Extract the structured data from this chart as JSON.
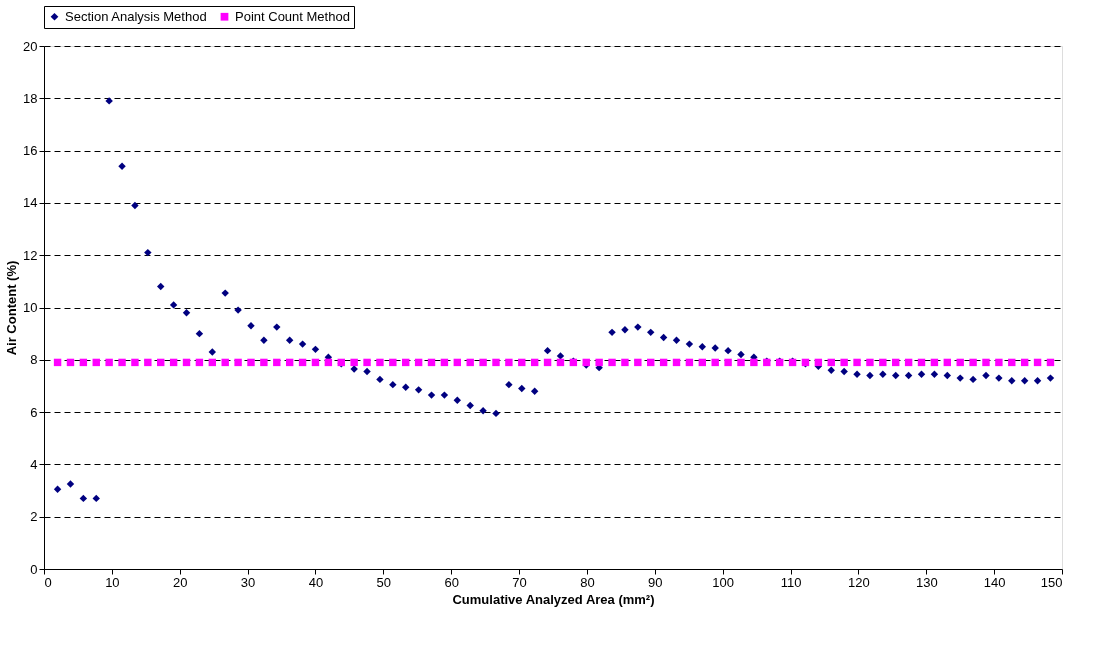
{
  "chart_data": {
    "type": "scatter",
    "xlabel": "Cumulative Analyzed Area (mm²)",
    "ylabel": "Air Content (%)",
    "x": [
      2.0,
      3.9,
      5.8,
      7.7,
      9.6,
      11.5,
      13.4,
      15.3,
      17.2,
      19.1,
      21.0,
      22.9,
      24.8,
      26.7,
      28.6,
      30.5,
      32.4,
      34.3,
      36.2,
      38.1,
      40.0,
      41.9,
      43.8,
      45.7,
      47.6,
      49.5,
      51.4,
      53.3,
      55.2,
      57.1,
      59.0,
      60.9,
      62.8,
      64.7,
      66.6,
      68.5,
      70.4,
      72.3,
      74.2,
      76.1,
      78.0,
      79.9,
      81.8,
      83.7,
      85.6,
      87.5,
      89.4,
      91.3,
      93.2,
      95.1,
      97.0,
      98.9,
      100.8,
      102.7,
      104.6,
      106.5,
      108.4,
      110.3,
      112.2,
      114.1,
      116.0,
      117.9,
      119.8,
      121.7,
      123.6,
      125.5,
      127.4,
      129.3,
      131.2,
      133.1,
      135.0,
      136.9,
      138.8,
      140.7,
      142.6,
      144.5,
      146.4,
      148.3
    ],
    "series": [
      {
        "name": "Section Analysis Method",
        "color": "#000080",
        "marker": "diamond",
        "values": [
          3.05,
          3.25,
          2.7,
          2.7,
          17.9,
          15.4,
          13.9,
          12.1,
          10.8,
          10.1,
          9.8,
          9.0,
          8.3,
          10.55,
          9.9,
          9.3,
          8.75,
          9.25,
          8.75,
          8.6,
          8.4,
          8.1,
          7.85,
          7.65,
          7.55,
          7.25,
          7.05,
          6.95,
          6.85,
          6.65,
          6.65,
          6.45,
          6.25,
          6.05,
          5.95,
          7.05,
          6.9,
          6.8,
          8.35,
          8.15,
          7.95,
          7.8,
          7.7,
          9.05,
          9.15,
          9.25,
          9.05,
          8.85,
          8.75,
          8.6,
          8.5,
          8.45,
          8.35,
          8.2,
          8.1,
          7.95,
          7.95,
          7.95,
          7.85,
          7.75,
          7.6,
          7.55,
          7.45,
          7.4,
          7.45,
          7.4,
          7.4,
          7.45,
          7.45,
          7.4,
          7.3,
          7.25,
          7.4,
          7.3,
          7.2,
          7.2,
          7.2,
          7.3
        ]
      },
      {
        "name": "Point Count Method",
        "color": "#ff00ff",
        "marker": "square",
        "values": [
          7.9,
          7.9,
          7.9,
          7.9,
          7.9,
          7.9,
          7.9,
          7.9,
          7.9,
          7.9,
          7.9,
          7.9,
          7.9,
          7.9,
          7.9,
          7.9,
          7.9,
          7.9,
          7.9,
          7.9,
          7.9,
          7.9,
          7.9,
          7.9,
          7.9,
          7.9,
          7.9,
          7.9,
          7.9,
          7.9,
          7.9,
          7.9,
          7.9,
          7.9,
          7.9,
          7.9,
          7.9,
          7.9,
          7.9,
          7.9,
          7.9,
          7.9,
          7.9,
          7.9,
          7.9,
          7.9,
          7.9,
          7.9,
          7.9,
          7.9,
          7.9,
          7.9,
          7.9,
          7.9,
          7.9,
          7.9,
          7.9,
          7.9,
          7.9,
          7.9,
          7.9,
          7.9,
          7.9,
          7.9,
          7.9,
          7.9,
          7.9,
          7.9,
          7.9,
          7.9,
          7.9,
          7.9,
          7.9,
          7.9,
          7.9,
          7.9,
          7.9,
          7.9
        ]
      }
    ],
    "xlim": [
      0,
      150
    ],
    "xticks": [
      0,
      10,
      20,
      30,
      40,
      50,
      60,
      70,
      80,
      90,
      100,
      110,
      120,
      130,
      140,
      150
    ],
    "ylim": [
      0,
      20
    ],
    "yticks": [
      0,
      2,
      4,
      6,
      8,
      10,
      12,
      14,
      16,
      18,
      20
    ],
    "grid": "y",
    "legend": "top"
  }
}
